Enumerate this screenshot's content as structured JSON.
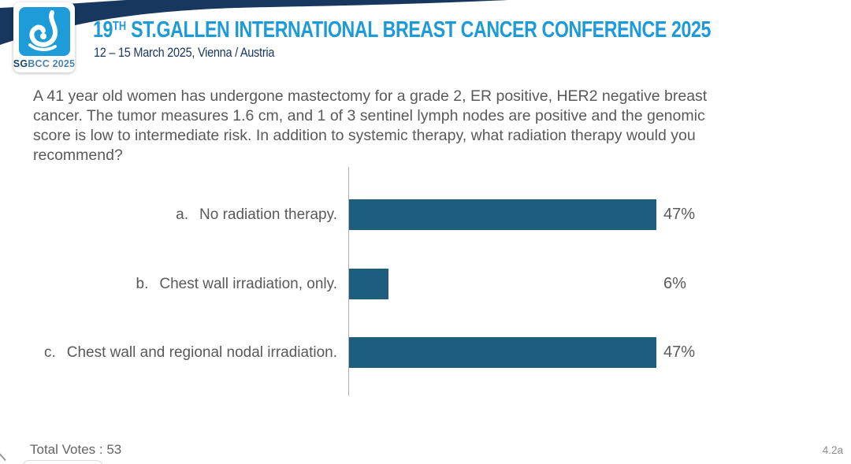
{
  "slide": {
    "header": {
      "logo": {
        "sg": "SG",
        "rest": "BCC 2025"
      },
      "title": {
        "num": "19",
        "sup": "TH",
        "rest": " ST.GALLEN INTERNATIONAL BREAST CANCER CONFERENCE 2025"
      },
      "subtitle": "12 – 15 March 2025, Vienna / Austria"
    },
    "question": "A 41 year old women has undergone mastectomy for a grade 2, ER positive, HER2 negative breast cancer. The tumor measures 1.6 cm, and 1 of 3 sentinel lymph nodes are positive and the genomic score is low to intermediate risk. In addition to systemic therapy, what radiation therapy would you recommend?",
    "footer": {
      "total_votes": "Total Votes : 53",
      "slide_ref": "4.2a"
    }
  },
  "chart_data": {
    "type": "bar",
    "orientation": "horizontal",
    "title": "",
    "categories": [
      "a. No radiation therapy.",
      "b. Chest wall irradiation, only.",
      "c. Chest wall and regional nodal irradiation."
    ],
    "values": [
      47,
      6,
      47
    ],
    "options": [
      {
        "letter": "a.",
        "label": "No radiation therapy.",
        "value": 47,
        "pct": "47%"
      },
      {
        "letter": "b.",
        "label": "Chest wall irradiation, only.",
        "value": 6,
        "pct": "6%"
      },
      {
        "letter": "c.",
        "label": "Chest wall and regional nodal irradiation.",
        "value": 47,
        "pct": "47%"
      }
    ],
    "unit": "percent_of_votes",
    "total_votes": 53,
    "xlim": [
      0,
      50
    ],
    "grid": false,
    "legend": false,
    "axis_line": true,
    "bar_color": "#1D5E80"
  },
  "colors": {
    "accent_blue": "#1C9BD8",
    "navy": "#17375E",
    "bar": "#1D5E80",
    "text_gray": "#595959"
  }
}
